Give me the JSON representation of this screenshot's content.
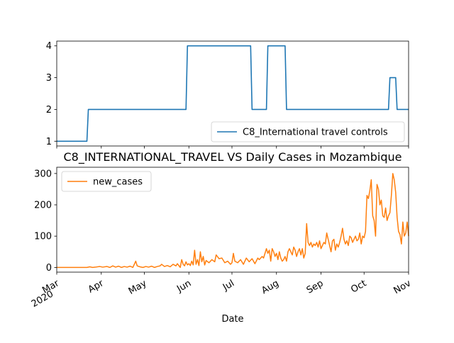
{
  "chart_data": [
    {
      "type": "line",
      "xlim": [
        "2020-03-01",
        "2020-11-01"
      ],
      "ylim": [
        0.85,
        4.15
      ],
      "yticks": [
        1,
        2,
        3,
        4
      ],
      "legend": {
        "position": "lower right"
      },
      "series": [
        {
          "name": "C8_International travel controls",
          "color": "#1f77b4",
          "steps": [
            {
              "x": "2020-03-01",
              "y": 1
            },
            {
              "x": "2020-03-22",
              "y": 1
            },
            {
              "x": "2020-03-23",
              "y": 2
            },
            {
              "x": "2020-05-30",
              "y": 2
            },
            {
              "x": "2020-05-31",
              "y": 4
            },
            {
              "x": "2020-07-14",
              "y": 4
            },
            {
              "x": "2020-07-15",
              "y": 2
            },
            {
              "x": "2020-07-25",
              "y": 2
            },
            {
              "x": "2020-07-26",
              "y": 4
            },
            {
              "x": "2020-08-07",
              "y": 4
            },
            {
              "x": "2020-08-08",
              "y": 2
            },
            {
              "x": "2020-10-18",
              "y": 2
            },
            {
              "x": "2020-10-19",
              "y": 3
            },
            {
              "x": "2020-10-23",
              "y": 3
            },
            {
              "x": "2020-10-24",
              "y": 2
            },
            {
              "x": "2020-11-01",
              "y": 2
            }
          ]
        }
      ]
    },
    {
      "type": "line",
      "title": "C8_INTERNATIONAL_TRAVEL VS Daily Cases in Mozambique",
      "xlabel": "Date",
      "xlim": [
        "2020-03-01",
        "2020-11-01"
      ],
      "ylim": [
        -15,
        320
      ],
      "yticks": [
        0,
        100,
        200,
        300
      ],
      "xticks": [
        {
          "x": "2020-03-01",
          "label": "Mar",
          "sublabel": "2020"
        },
        {
          "x": "2020-04-01",
          "label": "Apr"
        },
        {
          "x": "2020-05-01",
          "label": "May"
        },
        {
          "x": "2020-06-01",
          "label": "Jun"
        },
        {
          "x": "2020-07-01",
          "label": "Jul"
        },
        {
          "x": "2020-08-01",
          "label": "Aug"
        },
        {
          "x": "2020-09-01",
          "label": "Sep"
        },
        {
          "x": "2020-10-01",
          "label": "Oct"
        },
        {
          "x": "2020-11-01",
          "label": "Nov"
        }
      ],
      "legend": {
        "position": "upper left"
      },
      "series": [
        {
          "name": "new_cases",
          "color": "#ff7f0e",
          "points": [
            [
              "2020-03-01",
              0
            ],
            [
              "2020-03-10",
              0
            ],
            [
              "2020-03-22",
              0
            ],
            [
              "2020-03-24",
              2
            ],
            [
              "2020-03-26",
              0
            ],
            [
              "2020-03-28",
              1
            ],
            [
              "2020-03-31",
              3
            ],
            [
              "2020-04-02",
              1
            ],
            [
              "2020-04-05",
              3
            ],
            [
              "2020-04-07",
              0
            ],
            [
              "2020-04-09",
              5
            ],
            [
              "2020-04-11",
              1
            ],
            [
              "2020-04-13",
              4
            ],
            [
              "2020-04-15",
              0
            ],
            [
              "2020-04-17",
              3
            ],
            [
              "2020-04-19",
              1
            ],
            [
              "2020-04-21",
              4
            ],
            [
              "2020-04-23",
              0
            ],
            [
              "2020-04-24",
              10
            ],
            [
              "2020-04-25",
              20
            ],
            [
              "2020-04-26",
              5
            ],
            [
              "2020-04-28",
              2
            ],
            [
              "2020-04-30",
              0
            ],
            [
              "2020-05-02",
              3
            ],
            [
              "2020-05-04",
              1
            ],
            [
              "2020-05-06",
              4
            ],
            [
              "2020-05-08",
              0
            ],
            [
              "2020-05-10",
              3
            ],
            [
              "2020-05-12",
              5
            ],
            [
              "2020-05-13",
              10
            ],
            [
              "2020-05-15",
              3
            ],
            [
              "2020-05-17",
              6
            ],
            [
              "2020-05-19",
              2
            ],
            [
              "2020-05-21",
              10
            ],
            [
              "2020-05-23",
              5
            ],
            [
              "2020-05-24",
              12
            ],
            [
              "2020-05-26",
              0
            ],
            [
              "2020-05-27",
              25
            ],
            [
              "2020-05-28",
              10
            ],
            [
              "2020-05-29",
              5
            ],
            [
              "2020-05-30",
              18
            ],
            [
              "2020-05-31",
              8
            ],
            [
              "2020-06-01",
              12
            ],
            [
              "2020-06-02",
              6
            ],
            [
              "2020-06-03",
              20
            ],
            [
              "2020-06-04",
              8
            ],
            [
              "2020-06-05",
              55
            ],
            [
              "2020-06-06",
              10
            ],
            [
              "2020-06-07",
              25
            ],
            [
              "2020-06-08",
              6
            ],
            [
              "2020-06-09",
              50
            ],
            [
              "2020-06-10",
              18
            ],
            [
              "2020-06-11",
              35
            ],
            [
              "2020-06-12",
              8
            ],
            [
              "2020-06-13",
              22
            ],
            [
              "2020-06-15",
              15
            ],
            [
              "2020-06-17",
              25
            ],
            [
              "2020-06-19",
              18
            ],
            [
              "2020-06-20",
              40
            ],
            [
              "2020-06-22",
              28
            ],
            [
              "2020-06-24",
              30
            ],
            [
              "2020-06-26",
              15
            ],
            [
              "2020-06-28",
              20
            ],
            [
              "2020-06-30",
              10
            ],
            [
              "2020-07-01",
              15
            ],
            [
              "2020-07-02",
              45
            ],
            [
              "2020-07-03",
              20
            ],
            [
              "2020-07-05",
              15
            ],
            [
              "2020-07-07",
              25
            ],
            [
              "2020-07-09",
              10
            ],
            [
              "2020-07-11",
              30
            ],
            [
              "2020-07-13",
              18
            ],
            [
              "2020-07-15",
              28
            ],
            [
              "2020-07-17",
              12
            ],
            [
              "2020-07-19",
              30
            ],
            [
              "2020-07-20",
              25
            ],
            [
              "2020-07-22",
              35
            ],
            [
              "2020-07-23",
              30
            ],
            [
              "2020-07-25",
              60
            ],
            [
              "2020-07-26",
              45
            ],
            [
              "2020-07-27",
              55
            ],
            [
              "2020-07-28",
              20
            ],
            [
              "2020-07-29",
              60
            ],
            [
              "2020-07-30",
              50
            ],
            [
              "2020-07-31",
              35
            ],
            [
              "2020-08-01",
              45
            ],
            [
              "2020-08-02",
              25
            ],
            [
              "2020-08-03",
              50
            ],
            [
              "2020-08-04",
              30
            ],
            [
              "2020-08-05",
              20
            ],
            [
              "2020-08-06",
              25
            ],
            [
              "2020-08-07",
              35
            ],
            [
              "2020-08-08",
              20
            ],
            [
              "2020-08-09",
              50
            ],
            [
              "2020-08-10",
              60
            ],
            [
              "2020-08-11",
              50
            ],
            [
              "2020-08-12",
              40
            ],
            [
              "2020-08-13",
              65
            ],
            [
              "2020-08-14",
              55
            ],
            [
              "2020-08-15",
              35
            ],
            [
              "2020-08-16",
              50
            ],
            [
              "2020-08-17",
              60
            ],
            [
              "2020-08-18",
              40
            ],
            [
              "2020-08-19",
              60
            ],
            [
              "2020-08-20",
              30
            ],
            [
              "2020-08-21",
              45
            ],
            [
              "2020-08-22",
              140
            ],
            [
              "2020-08-23",
              80
            ],
            [
              "2020-08-24",
              70
            ],
            [
              "2020-08-25",
              80
            ],
            [
              "2020-08-26",
              65
            ],
            [
              "2020-08-27",
              75
            ],
            [
              "2020-08-28",
              70
            ],
            [
              "2020-08-29",
              80
            ],
            [
              "2020-08-30",
              65
            ],
            [
              "2020-08-31",
              85
            ],
            [
              "2020-09-01",
              60
            ],
            [
              "2020-09-02",
              70
            ],
            [
              "2020-09-03",
              80
            ],
            [
              "2020-09-04",
              75
            ],
            [
              "2020-09-05",
              110
            ],
            [
              "2020-09-06",
              90
            ],
            [
              "2020-09-07",
              70
            ],
            [
              "2020-09-08",
              50
            ],
            [
              "2020-09-09",
              85
            ],
            [
              "2020-09-10",
              90
            ],
            [
              "2020-09-11",
              55
            ],
            [
              "2020-09-12",
              75
            ],
            [
              "2020-09-13",
              65
            ],
            [
              "2020-09-14",
              80
            ],
            [
              "2020-09-15",
              100
            ],
            [
              "2020-09-16",
              125
            ],
            [
              "2020-09-17",
              90
            ],
            [
              "2020-09-18",
              75
            ],
            [
              "2020-09-19",
              85
            ],
            [
              "2020-09-20",
              70
            ],
            [
              "2020-09-21",
              100
            ],
            [
              "2020-09-22",
              95
            ],
            [
              "2020-09-23",
              80
            ],
            [
              "2020-09-24",
              90
            ],
            [
              "2020-09-25",
              100
            ],
            [
              "2020-09-26",
              85
            ],
            [
              "2020-09-27",
              90
            ],
            [
              "2020-09-28",
              110
            ],
            [
              "2020-09-29",
              75
            ],
            [
              "2020-09-30",
              100
            ],
            [
              "2020-10-01",
              95
            ],
            [
              "2020-10-02",
              115
            ],
            [
              "2020-10-03",
              230
            ],
            [
              "2020-10-04",
              220
            ],
            [
              "2020-10-05",
              245
            ],
            [
              "2020-10-06",
              280
            ],
            [
              "2020-10-07",
              165
            ],
            [
              "2020-10-08",
              150
            ],
            [
              "2020-10-09",
              100
            ],
            [
              "2020-10-10",
              265
            ],
            [
              "2020-10-11",
              250
            ],
            [
              "2020-10-12",
              200
            ],
            [
              "2020-10-13",
              215
            ],
            [
              "2020-10-14",
              165
            ],
            [
              "2020-10-15",
              160
            ],
            [
              "2020-10-16",
              190
            ],
            [
              "2020-10-17",
              150
            ],
            [
              "2020-10-18",
              165
            ],
            [
              "2020-10-19",
              175
            ],
            [
              "2020-10-20",
              230
            ],
            [
              "2020-10-21",
              300
            ],
            [
              "2020-10-22",
              280
            ],
            [
              "2020-10-23",
              240
            ],
            [
              "2020-10-24",
              160
            ],
            [
              "2020-10-25",
              115
            ],
            [
              "2020-10-26",
              105
            ],
            [
              "2020-10-27",
              75
            ],
            [
              "2020-10-28",
              145
            ],
            [
              "2020-10-29",
              100
            ],
            [
              "2020-10-30",
              110
            ],
            [
              "2020-10-31",
              145
            ],
            [
              "2020-11-01",
              100
            ]
          ]
        }
      ]
    }
  ]
}
